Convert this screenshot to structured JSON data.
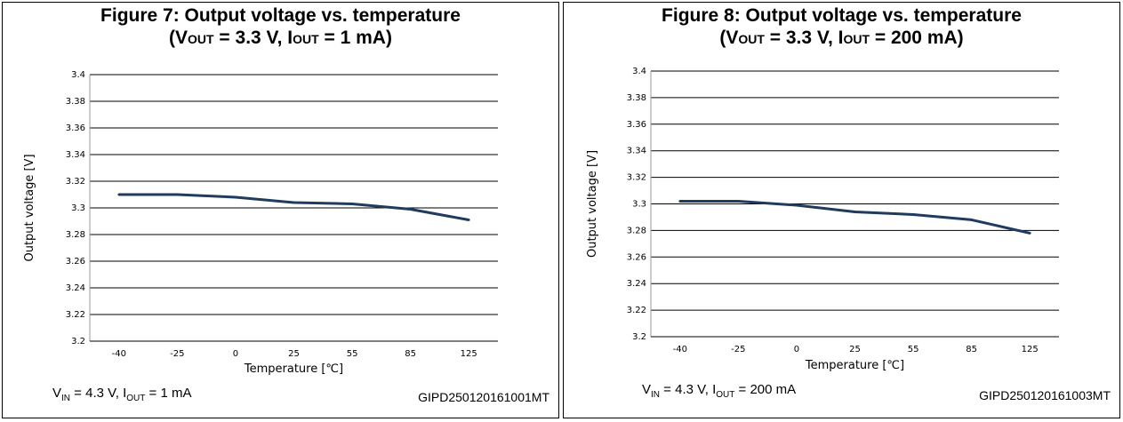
{
  "figures": [
    {
      "title_line1": "Figure 7: Output voltage vs. temperature",
      "cond": {
        "open": "(V",
        "vout_sub": "OUT",
        "vout_rest": " = 3.3 V, I",
        "iout_sub": "OUT",
        "iout_rest": " = 1 mA)"
      },
      "footnote": {
        "v": "V",
        "v_sub": "IN",
        "mid": " = 4.3 V, I",
        "i_sub": "OUT",
        "rest": " = 1 mA"
      },
      "code": "GIPD250120161001MT"
    },
    {
      "title_line1": "Figure 8: Output voltage vs. temperature",
      "cond": {
        "open": "(V",
        "vout_sub": "OUT",
        "vout_rest": " = 3.3 V, I",
        "iout_sub": "OUT",
        "iout_rest": " = 200 mA)"
      },
      "footnote": {
        "v": "V",
        "v_sub": "IN",
        "mid": " = 4.3 V, I",
        "i_sub": "OUT",
        "rest": " = 200 mA"
      },
      "code": "GIPD250120161003MT"
    }
  ],
  "chart_data": [
    {
      "type": "line",
      "title": "Figure 7: Output voltage vs. temperature",
      "xlabel": "Temperature [℃]",
      "ylabel": "Output voltage [V]",
      "categories": [
        "-40",
        "-25",
        "0",
        "25",
        "55",
        "85",
        "125"
      ],
      "values": [
        3.31,
        3.31,
        3.308,
        3.304,
        3.303,
        3.299,
        3.291
      ],
      "ylim": [
        3.2,
        3.4
      ],
      "yticks": [
        "3.2",
        "3.22",
        "3.24",
        "3.26",
        "3.28",
        "3.3",
        "3.32",
        "3.34",
        "3.36",
        "3.38",
        "3.4"
      ],
      "grid": true,
      "line_color": "#1f3b5e"
    },
    {
      "type": "line",
      "title": "Figure 8: Output voltage vs. temperature",
      "xlabel": "Temperature [℃]",
      "ylabel": "Output voltage [V]",
      "categories": [
        "-40",
        "-25",
        "0",
        "25",
        "55",
        "85",
        "125"
      ],
      "values": [
        3.302,
        3.302,
        3.299,
        3.294,
        3.292,
        3.288,
        3.278
      ],
      "ylim": [
        3.2,
        3.4
      ],
      "yticks": [
        "3.2",
        "3.22",
        "3.24",
        "3.26",
        "3.28",
        "3.3",
        "3.32",
        "3.34",
        "3.36",
        "3.38",
        "3.4"
      ],
      "grid": true,
      "line_color": "#1f3b5e"
    }
  ]
}
